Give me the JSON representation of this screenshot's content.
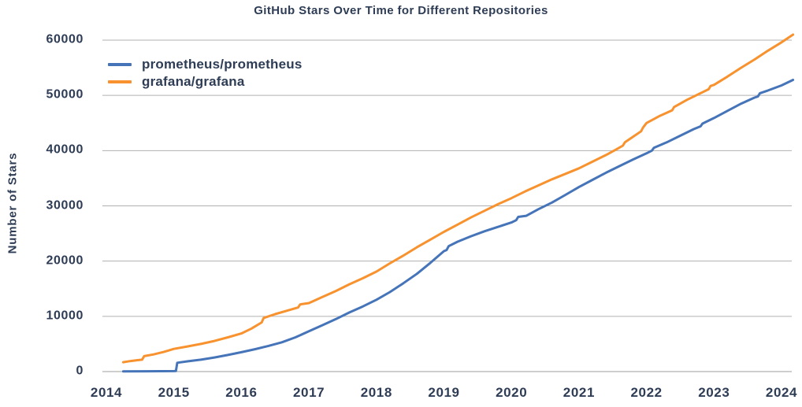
{
  "colors": {
    "text": "#2e3d55",
    "grid": "#b0b0b0",
    "axis": "#9c9c9c",
    "background": "#ffffff",
    "prometheus_blue": "#4574b9",
    "grafana_orange": "#f8922e"
  },
  "chart_data": {
    "type": "line",
    "title": "GitHub Stars Over Time for Different Repositories",
    "xlabel": "",
    "ylabel": "Number of Stars",
    "xlim": [
      2014,
      2024.2
    ],
    "ylim": [
      0,
      60000
    ],
    "x_ticks": [
      2014,
      2015,
      2016,
      2017,
      2018,
      2019,
      2020,
      2021,
      2022,
      2023,
      2024
    ],
    "y_ticks": [
      0,
      10000,
      20000,
      30000,
      40000,
      50000,
      60000
    ],
    "grid": "horizontal",
    "legend_position": "upper-left",
    "series": [
      {
        "name": "prometheus/prometheus",
        "color": "#4574b9",
        "points": [
          [
            2014.25,
            30
          ],
          [
            2014.6,
            60
          ],
          [
            2015.0,
            90
          ],
          [
            2015.03,
            110
          ],
          [
            2015.05,
            1600
          ],
          [
            2015.2,
            1850
          ],
          [
            2015.4,
            2150
          ],
          [
            2015.6,
            2550
          ],
          [
            2015.8,
            3000
          ],
          [
            2016.0,
            3500
          ],
          [
            2016.2,
            4050
          ],
          [
            2016.4,
            4650
          ],
          [
            2016.6,
            5300
          ],
          [
            2016.8,
            6200
          ],
          [
            2017.0,
            7300
          ],
          [
            2017.2,
            8400
          ],
          [
            2017.4,
            9500
          ],
          [
            2017.6,
            10700
          ],
          [
            2017.8,
            11800
          ],
          [
            2018.0,
            13000
          ],
          [
            2018.2,
            14400
          ],
          [
            2018.4,
            16000
          ],
          [
            2018.6,
            17700
          ],
          [
            2018.8,
            19700
          ],
          [
            2019.0,
            21800
          ],
          [
            2019.04,
            22000
          ],
          [
            2019.07,
            22700
          ],
          [
            2019.2,
            23500
          ],
          [
            2019.4,
            24500
          ],
          [
            2019.6,
            25400
          ],
          [
            2019.8,
            26200
          ],
          [
            2020.0,
            27000
          ],
          [
            2020.07,
            27400
          ],
          [
            2020.1,
            28000
          ],
          [
            2020.22,
            28200
          ],
          [
            2020.4,
            29400
          ],
          [
            2020.6,
            30600
          ],
          [
            2020.8,
            32000
          ],
          [
            2021.0,
            33400
          ],
          [
            2021.2,
            34700
          ],
          [
            2021.4,
            36000
          ],
          [
            2021.6,
            37200
          ],
          [
            2021.8,
            38400
          ],
          [
            2022.0,
            39500
          ],
          [
            2022.08,
            40000
          ],
          [
            2022.11,
            40500
          ],
          [
            2022.3,
            41500
          ],
          [
            2022.5,
            42700
          ],
          [
            2022.7,
            43900
          ],
          [
            2022.8,
            44400
          ],
          [
            2022.83,
            44900
          ],
          [
            2023.0,
            45900
          ],
          [
            2023.2,
            47200
          ],
          [
            2023.4,
            48500
          ],
          [
            2023.6,
            49600
          ],
          [
            2023.65,
            49800
          ],
          [
            2023.68,
            50400
          ],
          [
            2023.8,
            50900
          ],
          [
            2024.0,
            51800
          ],
          [
            2024.17,
            52800
          ]
        ]
      },
      {
        "name": "grafana/grafana",
        "color": "#f8922e",
        "points": [
          [
            2014.25,
            1700
          ],
          [
            2014.35,
            1900
          ],
          [
            2014.45,
            2050
          ],
          [
            2014.53,
            2150
          ],
          [
            2014.56,
            2800
          ],
          [
            2014.7,
            3100
          ],
          [
            2014.85,
            3550
          ],
          [
            2015.0,
            4100
          ],
          [
            2015.2,
            4550
          ],
          [
            2015.4,
            5000
          ],
          [
            2015.6,
            5550
          ],
          [
            2015.8,
            6200
          ],
          [
            2016.0,
            6900
          ],
          [
            2016.15,
            7800
          ],
          [
            2016.3,
            8900
          ],
          [
            2016.33,
            9700
          ],
          [
            2016.5,
            10400
          ],
          [
            2016.7,
            11100
          ],
          [
            2016.84,
            11600
          ],
          [
            2016.87,
            12150
          ],
          [
            2017.0,
            12400
          ],
          [
            2017.2,
            13500
          ],
          [
            2017.4,
            14600
          ],
          [
            2017.6,
            15800
          ],
          [
            2017.8,
            16900
          ],
          [
            2018.0,
            18100
          ],
          [
            2018.2,
            19600
          ],
          [
            2018.4,
            21000
          ],
          [
            2018.6,
            22500
          ],
          [
            2018.8,
            23900
          ],
          [
            2019.0,
            25300
          ],
          [
            2019.2,
            26600
          ],
          [
            2019.4,
            27900
          ],
          [
            2019.6,
            29100
          ],
          [
            2019.8,
            30300
          ],
          [
            2020.0,
            31400
          ],
          [
            2020.2,
            32600
          ],
          [
            2020.4,
            33700
          ],
          [
            2020.6,
            34800
          ],
          [
            2020.8,
            35800
          ],
          [
            2021.0,
            36800
          ],
          [
            2021.2,
            38000
          ],
          [
            2021.4,
            39200
          ],
          [
            2021.55,
            40200
          ],
          [
            2021.65,
            40900
          ],
          [
            2021.68,
            41500
          ],
          [
            2021.8,
            42500
          ],
          [
            2021.92,
            43500
          ],
          [
            2021.95,
            44200
          ],
          [
            2022.0,
            45000
          ],
          [
            2022.2,
            46300
          ],
          [
            2022.38,
            47300
          ],
          [
            2022.41,
            47900
          ],
          [
            2022.6,
            49200
          ],
          [
            2022.8,
            50400
          ],
          [
            2022.92,
            51100
          ],
          [
            2022.95,
            51700
          ],
          [
            2023.0,
            51900
          ],
          [
            2023.2,
            53400
          ],
          [
            2023.4,
            55000
          ],
          [
            2023.6,
            56500
          ],
          [
            2023.8,
            58100
          ],
          [
            2024.0,
            59600
          ],
          [
            2024.17,
            61000
          ]
        ]
      }
    ]
  }
}
